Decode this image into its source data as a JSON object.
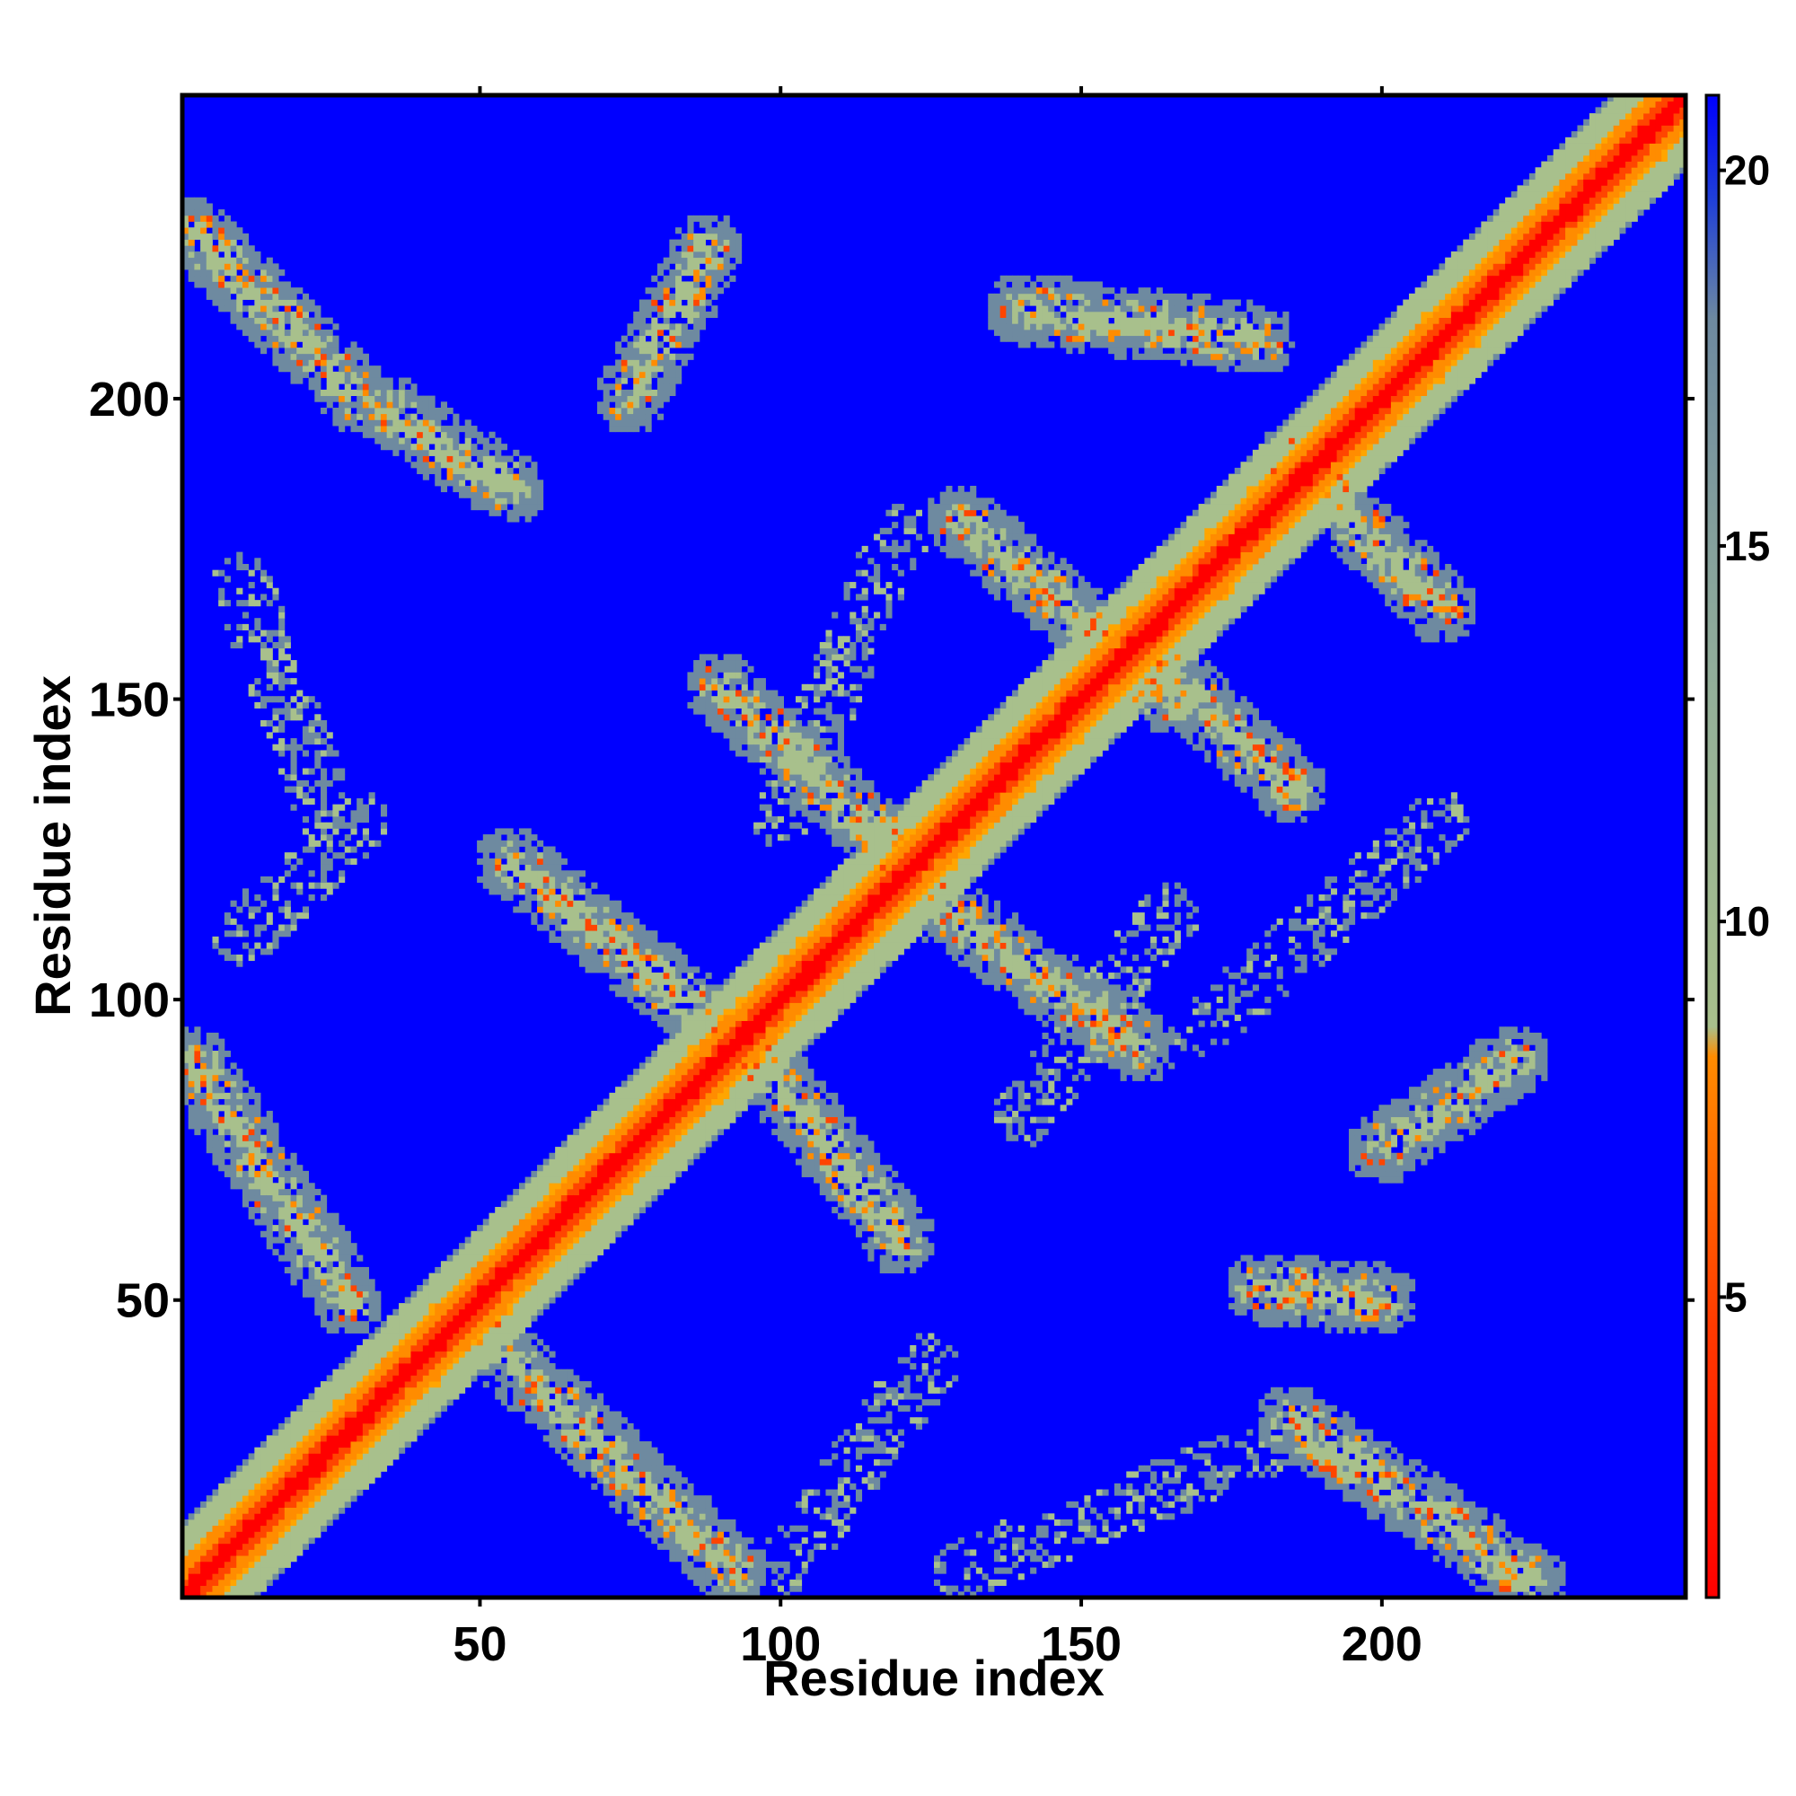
{
  "chart_data": {
    "type": "heatmap",
    "title": "",
    "xlabel": "Residue index",
    "ylabel": "Residue index",
    "x_range": [
      1,
      250
    ],
    "y_range": [
      1,
      250
    ],
    "x_ticks": [
      50,
      100,
      150,
      200
    ],
    "y_ticks": [
      50,
      100,
      150,
      200
    ],
    "colorbar": {
      "range": [
        1,
        21
      ],
      "ticks": [
        5,
        10,
        15,
        20
      ],
      "colors": {
        "low": "#ff0000",
        "mid_low": "#ff8c00",
        "mid": "#ffa500",
        "mid_high": "#a8c08c",
        "high": "#6e8aa0",
        "background": "#0000ff"
      }
    },
    "features": [
      {
        "kind": "diagonal",
        "from": [
          1,
          1
        ],
        "to": [
          250,
          250
        ],
        "width": 12
      },
      {
        "kind": "band",
        "from": [
          2,
          90
        ],
        "to": [
          28,
          50
        ]
      },
      {
        "kind": "band",
        "from": [
          50,
          45
        ],
        "to": [
          92,
          5
        ]
      },
      {
        "kind": "band",
        "from": [
          55,
          123
        ],
        "to": [
          90,
          95
        ]
      },
      {
        "kind": "band",
        "from": [
          90,
          152
        ],
        "to": [
          122,
          122
        ]
      },
      {
        "kind": "band",
        "from": [
          93,
          95
        ],
        "to": [
          120,
          60
        ]
      },
      {
        "kind": "band",
        "from": [
          120,
          120
        ],
        "to": [
          160,
          92
        ]
      },
      {
        "kind": "band",
        "from": [
          130,
          180
        ],
        "to": [
          165,
          150
        ]
      },
      {
        "kind": "band",
        "from": [
          140,
          215
        ],
        "to": [
          180,
          210
        ]
      },
      {
        "kind": "band",
        "from": [
          160,
          158
        ],
        "to": [
          185,
          135
        ]
      },
      {
        "kind": "band",
        "from": [
          185,
          190
        ],
        "to": [
          210,
          165
        ]
      },
      {
        "kind": "band",
        "from": [
          2,
          228
        ],
        "to": [
          30,
          200
        ]
      },
      {
        "kind": "band",
        "from": [
          75,
          200
        ],
        "to": [
          88,
          225
        ]
      },
      {
        "kind": "band",
        "from": [
          35,
          198
        ],
        "to": [
          55,
          185
        ]
      },
      {
        "kind": "band",
        "from": [
          185,
          30
        ],
        "to": [
          225,
          3
        ]
      },
      {
        "kind": "band",
        "from": [
          200,
          75
        ],
        "to": [
          222,
          90
        ]
      },
      {
        "kind": "band",
        "from": [
          180,
          52
        ],
        "to": [
          200,
          50
        ]
      },
      {
        "kind": "sparse",
        "from": [
          10,
          170
        ],
        "to": [
          25,
          130
        ]
      },
      {
        "kind": "sparse",
        "from": [
          10,
          110
        ],
        "to": [
          30,
          130
        ]
      },
      {
        "kind": "sparse",
        "from": [
          100,
          130
        ],
        "to": [
          120,
          178
        ]
      },
      {
        "kind": "sparse",
        "from": [
          140,
          80
        ],
        "to": [
          165,
          115
        ]
      },
      {
        "kind": "sparse",
        "from": [
          100,
          5
        ],
        "to": [
          125,
          40
        ]
      },
      {
        "kind": "sparse",
        "from": [
          130,
          5
        ],
        "to": [
          180,
          25
        ]
      },
      {
        "kind": "sparse",
        "from": [
          170,
          95
        ],
        "to": [
          210,
          130
        ]
      }
    ]
  }
}
